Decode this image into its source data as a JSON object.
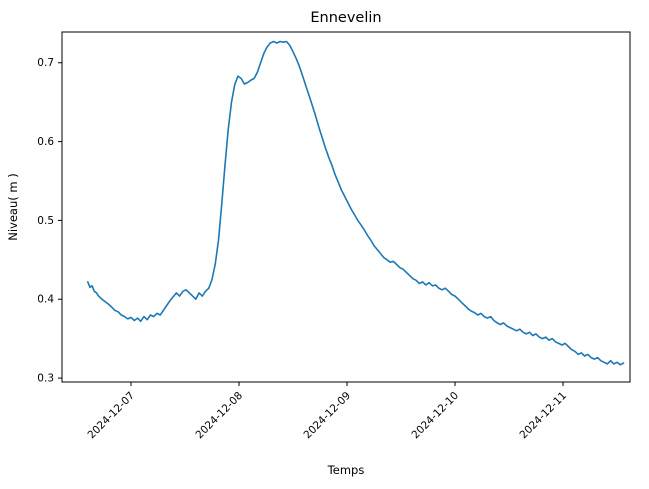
{
  "chart_data": {
    "type": "line",
    "title": "Ennevelin",
    "xlabel": "Temps",
    "ylabel": "Niveau( m )",
    "line_color": "#1f77b4",
    "grid": false,
    "legend": "none",
    "x_axis_unit": "days since 2024-12-06 00:00",
    "x_range": [
      0.361,
      5.62
    ],
    "y_range": [
      0.295,
      0.739
    ],
    "x_ticks": [
      {
        "t": 1,
        "label": "2024-12-07"
      },
      {
        "t": 2,
        "label": "2024-12-08"
      },
      {
        "t": 3,
        "label": "2024-12-09"
      },
      {
        "t": 4,
        "label": "2024-12-10"
      },
      {
        "t": 5,
        "label": "2024-12-11"
      }
    ],
    "y_ticks": [
      {
        "v": 0.3,
        "label": "0.3"
      },
      {
        "v": 0.4,
        "label": "0.4"
      },
      {
        "v": 0.5,
        "label": "0.5"
      },
      {
        "v": 0.6,
        "label": "0.6"
      },
      {
        "v": 0.7,
        "label": "0.7"
      }
    ],
    "points": [
      [
        0.6,
        0.422
      ],
      [
        0.62,
        0.415
      ],
      [
        0.64,
        0.417
      ],
      [
        0.66,
        0.41
      ],
      [
        0.68,
        0.408
      ],
      [
        0.7,
        0.404
      ],
      [
        0.73,
        0.4
      ],
      [
        0.76,
        0.397
      ],
      [
        0.79,
        0.394
      ],
      [
        0.82,
        0.39
      ],
      [
        0.85,
        0.386
      ],
      [
        0.88,
        0.384
      ],
      [
        0.91,
        0.38
      ],
      [
        0.94,
        0.378
      ],
      [
        0.97,
        0.375
      ],
      [
        1.0,
        0.377
      ],
      [
        1.03,
        0.373
      ],
      [
        1.06,
        0.376
      ],
      [
        1.09,
        0.372
      ],
      [
        1.12,
        0.378
      ],
      [
        1.15,
        0.374
      ],
      [
        1.18,
        0.38
      ],
      [
        1.21,
        0.378
      ],
      [
        1.24,
        0.382
      ],
      [
        1.27,
        0.38
      ],
      [
        1.3,
        0.386
      ],
      [
        1.33,
        0.392
      ],
      [
        1.36,
        0.398
      ],
      [
        1.39,
        0.403
      ],
      [
        1.42,
        0.408
      ],
      [
        1.45,
        0.404
      ],
      [
        1.48,
        0.41
      ],
      [
        1.51,
        0.412
      ],
      [
        1.54,
        0.408
      ],
      [
        1.57,
        0.404
      ],
      [
        1.6,
        0.4
      ],
      [
        1.63,
        0.408
      ],
      [
        1.66,
        0.404
      ],
      [
        1.69,
        0.41
      ],
      [
        1.72,
        0.414
      ],
      [
        1.75,
        0.425
      ],
      [
        1.78,
        0.445
      ],
      [
        1.81,
        0.475
      ],
      [
        1.84,
        0.52
      ],
      [
        1.87,
        0.57
      ],
      [
        1.9,
        0.615
      ],
      [
        1.93,
        0.65
      ],
      [
        1.96,
        0.672
      ],
      [
        1.99,
        0.683
      ],
      [
        2.02,
        0.68
      ],
      [
        2.05,
        0.673
      ],
      [
        2.08,
        0.675
      ],
      [
        2.11,
        0.678
      ],
      [
        2.14,
        0.68
      ],
      [
        2.17,
        0.688
      ],
      [
        2.2,
        0.7
      ],
      [
        2.23,
        0.712
      ],
      [
        2.26,
        0.72
      ],
      [
        2.29,
        0.725
      ],
      [
        2.32,
        0.727
      ],
      [
        2.35,
        0.725
      ],
      [
        2.38,
        0.727
      ],
      [
        2.41,
        0.726
      ],
      [
        2.44,
        0.727
      ],
      [
        2.47,
        0.722
      ],
      [
        2.5,
        0.714
      ],
      [
        2.53,
        0.705
      ],
      [
        2.56,
        0.695
      ],
      [
        2.59,
        0.683
      ],
      [
        2.62,
        0.67
      ],
      [
        2.65,
        0.658
      ],
      [
        2.68,
        0.645
      ],
      [
        2.71,
        0.632
      ],
      [
        2.74,
        0.618
      ],
      [
        2.77,
        0.605
      ],
      [
        2.8,
        0.592
      ],
      [
        2.83,
        0.58
      ],
      [
        2.86,
        0.57
      ],
      [
        2.89,
        0.558
      ],
      [
        2.92,
        0.548
      ],
      [
        2.95,
        0.538
      ],
      [
        2.98,
        0.53
      ],
      [
        3.01,
        0.522
      ],
      [
        3.04,
        0.514
      ],
      [
        3.07,
        0.507
      ],
      [
        3.1,
        0.5
      ],
      [
        3.13,
        0.494
      ],
      [
        3.16,
        0.488
      ],
      [
        3.19,
        0.481
      ],
      [
        3.22,
        0.475
      ],
      [
        3.25,
        0.468
      ],
      [
        3.28,
        0.463
      ],
      [
        3.31,
        0.458
      ],
      [
        3.34,
        0.453
      ],
      [
        3.37,
        0.45
      ],
      [
        3.4,
        0.447
      ],
      [
        3.43,
        0.448
      ],
      [
        3.46,
        0.444
      ],
      [
        3.49,
        0.44
      ],
      [
        3.52,
        0.438
      ],
      [
        3.55,
        0.434
      ],
      [
        3.58,
        0.43
      ],
      [
        3.61,
        0.426
      ],
      [
        3.64,
        0.424
      ],
      [
        3.67,
        0.42
      ],
      [
        3.7,
        0.422
      ],
      [
        3.73,
        0.418
      ],
      [
        3.76,
        0.421
      ],
      [
        3.79,
        0.417
      ],
      [
        3.82,
        0.418
      ],
      [
        3.85,
        0.414
      ],
      [
        3.88,
        0.412
      ],
      [
        3.91,
        0.414
      ],
      [
        3.94,
        0.41
      ],
      [
        3.97,
        0.406
      ],
      [
        4.0,
        0.404
      ],
      [
        4.03,
        0.4
      ],
      [
        4.06,
        0.396
      ],
      [
        4.09,
        0.392
      ],
      [
        4.12,
        0.388
      ],
      [
        4.15,
        0.385
      ],
      [
        4.18,
        0.383
      ],
      [
        4.21,
        0.38
      ],
      [
        4.24,
        0.382
      ],
      [
        4.27,
        0.378
      ],
      [
        4.3,
        0.376
      ],
      [
        4.33,
        0.378
      ],
      [
        4.36,
        0.373
      ],
      [
        4.39,
        0.37
      ],
      [
        4.42,
        0.368
      ],
      [
        4.45,
        0.37
      ],
      [
        4.48,
        0.366
      ],
      [
        4.51,
        0.364
      ],
      [
        4.54,
        0.362
      ],
      [
        4.57,
        0.36
      ],
      [
        4.6,
        0.362
      ],
      [
        4.63,
        0.358
      ],
      [
        4.66,
        0.356
      ],
      [
        4.69,
        0.358
      ],
      [
        4.72,
        0.354
      ],
      [
        4.75,
        0.356
      ],
      [
        4.78,
        0.352
      ],
      [
        4.81,
        0.35
      ],
      [
        4.84,
        0.352
      ],
      [
        4.87,
        0.348
      ],
      [
        4.9,
        0.35
      ],
      [
        4.93,
        0.346
      ],
      [
        4.96,
        0.344
      ],
      [
        4.99,
        0.342
      ],
      [
        5.02,
        0.344
      ],
      [
        5.05,
        0.34
      ],
      [
        5.08,
        0.336
      ],
      [
        5.11,
        0.334
      ],
      [
        5.14,
        0.33
      ],
      [
        5.17,
        0.332
      ],
      [
        5.2,
        0.328
      ],
      [
        5.23,
        0.33
      ],
      [
        5.26,
        0.326
      ],
      [
        5.29,
        0.324
      ],
      [
        5.32,
        0.326
      ],
      [
        5.35,
        0.322
      ],
      [
        5.38,
        0.32
      ],
      [
        5.41,
        0.318
      ],
      [
        5.44,
        0.322
      ],
      [
        5.47,
        0.318
      ],
      [
        5.5,
        0.32
      ],
      [
        5.53,
        0.317
      ],
      [
        5.56,
        0.319
      ]
    ]
  }
}
